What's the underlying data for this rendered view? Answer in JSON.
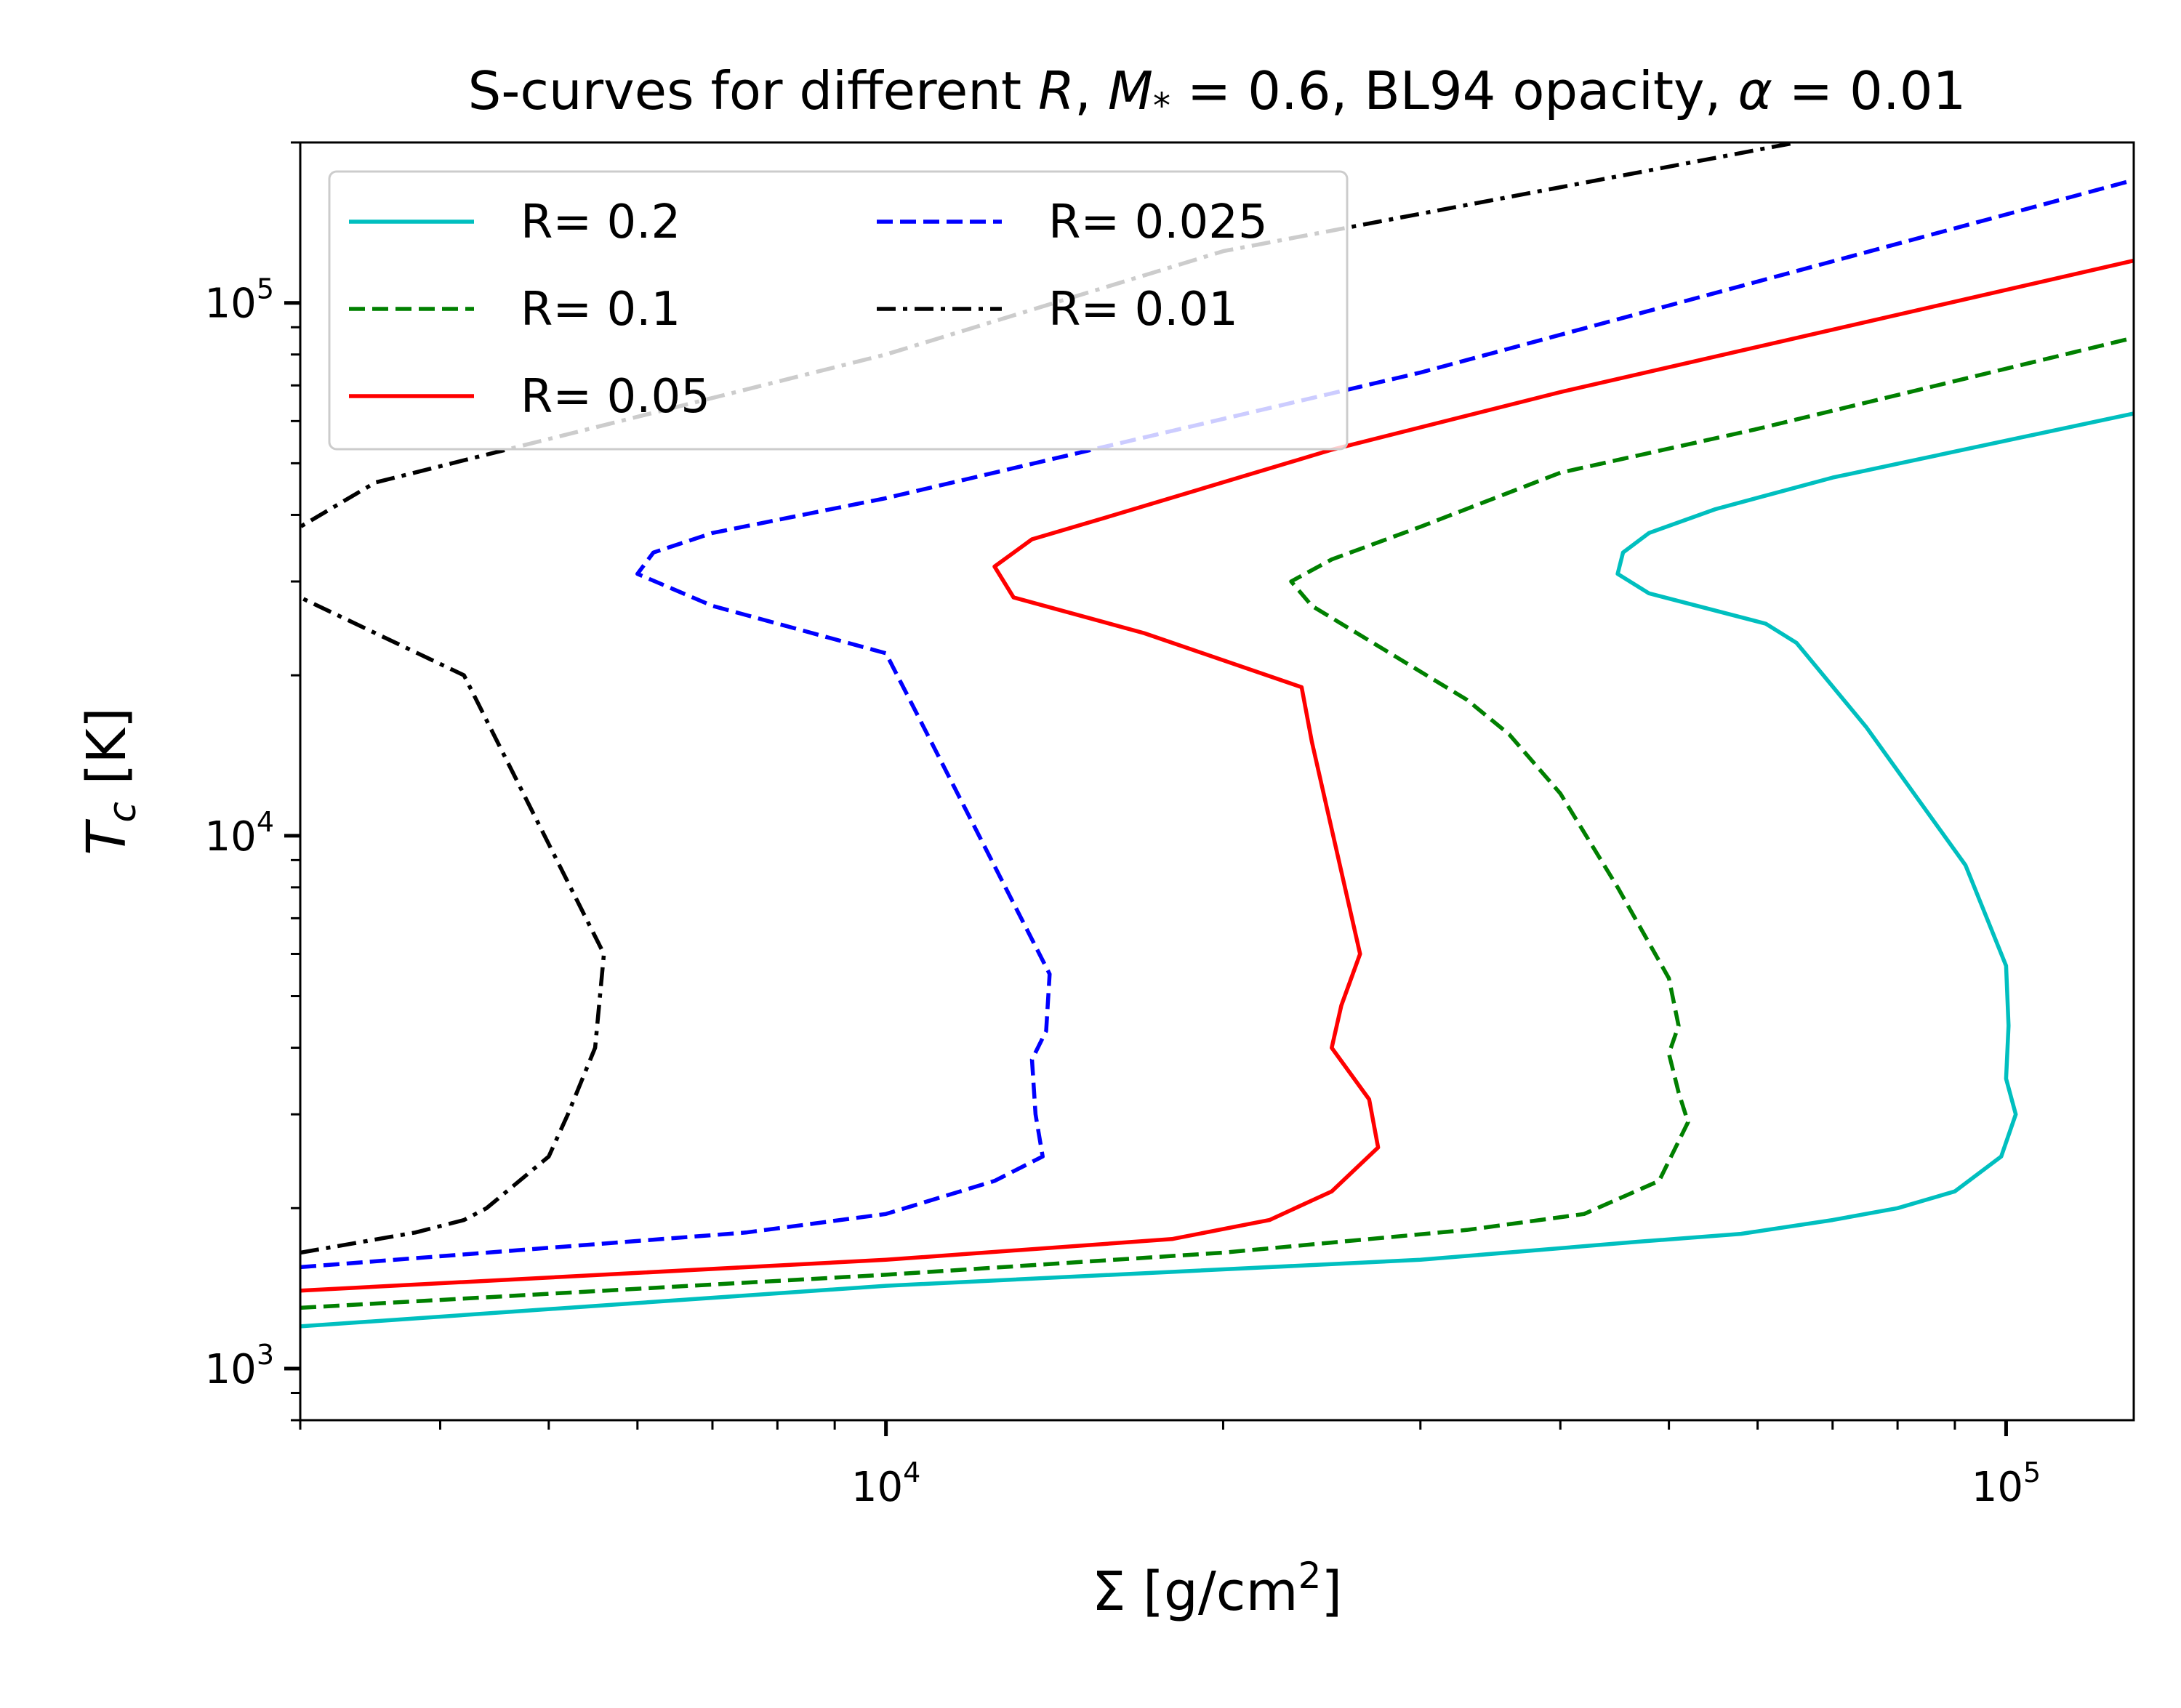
{
  "chart_data": {
    "type": "line",
    "title": "S-curves for different R, M* = 0.6, BL94 opacity, α = 0.01",
    "title_parts": {
      "prefix": "S-curves for different ",
      "r_symbol": "R",
      "sep1": ", ",
      "m_symbol": "M",
      "m_sub": "*",
      "m_value": " = 0.6, BL94 opacity, ",
      "alpha_symbol": "α",
      "alpha_value": " = 0.01"
    },
    "xlabel": "Σ [g/cm²]",
    "xlabel_parts": {
      "base": "Σ [g/cm",
      "sup": "2",
      "end": "]"
    },
    "ylabel": "T_c [K]",
    "ylabel_parts": {
      "symbol": "T",
      "sub": "c",
      "unit": " [K]"
    },
    "x_scale": "log",
    "y_scale": "log",
    "xlim": [
      3000,
      130000
    ],
    "ylim": [
      800,
      200000
    ],
    "x_ticks": [
      {
        "value": 10000,
        "base": "10",
        "exp": "4"
      },
      {
        "value": 100000,
        "base": "10",
        "exp": "5"
      }
    ],
    "y_ticks": [
      {
        "value": 1000,
        "base": "10",
        "exp": "3"
      },
      {
        "value": 10000,
        "base": "10",
        "exp": "4"
      },
      {
        "value": 100000,
        "base": "10",
        "exp": "5"
      }
    ],
    "grid": false,
    "legend_placement": "upper-left",
    "legend_columns": 2,
    "series": [
      {
        "name": "R= 0.2",
        "color": "#00bfbf",
        "dash": "solid",
        "x": [
          3000,
          10000,
          30000,
          47000,
          58000,
          70000,
          80000,
          90000,
          99000,
          102000,
          100000,
          100500,
          100000,
          92000,
          75000,
          65000,
          61000,
          48000,
          45000,
          45500,
          48000,
          55000,
          70000,
          130000
        ],
        "y": [
          1200,
          1430,
          1600,
          1730,
          1790,
          1900,
          2000,
          2150,
          2500,
          3000,
          3500,
          4400,
          5700,
          8800,
          16000,
          23000,
          25000,
          28500,
          31000,
          34000,
          37000,
          41000,
          47000,
          62000
        ]
      },
      {
        "name": "R= 0.1",
        "color": "#008000",
        "dash": "dashed",
        "x": [
          3000,
          10000,
          20000,
          33000,
          42000,
          49000,
          52000,
          51000,
          50000,
          51000,
          50000,
          45000,
          40000,
          36000,
          33000,
          24000,
          23000,
          25000,
          30000,
          40000,
          60000,
          130000
        ],
        "y": [
          1300,
          1500,
          1650,
          1820,
          1950,
          2250,
          2900,
          3300,
          3900,
          4400,
          5400,
          8000,
          12000,
          15500,
          18000,
          27000,
          30000,
          33000,
          38000,
          48000,
          58000,
          86000
        ]
      },
      {
        "name": "R= 0.05",
        "color": "#ff0000",
        "dash": "solid",
        "x": [
          3000,
          10000,
          18000,
          22000,
          25000,
          27500,
          27000,
          25000,
          25500,
          26500,
          24000,
          23500,
          17000,
          13000,
          12500,
          13500,
          16000,
          25000,
          40000,
          130000
        ],
        "y": [
          1400,
          1600,
          1750,
          1900,
          2150,
          2600,
          3200,
          4000,
          4800,
          6000,
          15000,
          19000,
          24000,
          28000,
          32000,
          36000,
          40000,
          53000,
          68000,
          120000
        ]
      },
      {
        "name": "R= 0.025",
        "color": "#0000ff",
        "dash": "dashed",
        "x": [
          3000,
          7500,
          10000,
          12500,
          13800,
          13600,
          13500,
          13900,
          14000,
          10500,
          10000,
          7000,
          6000,
          6200,
          7000,
          10000,
          30000,
          130000
        ],
        "y": [
          1550,
          1800,
          1950,
          2250,
          2500,
          3000,
          3800,
          4300,
          5500,
          18000,
          22000,
          27000,
          31000,
          34000,
          37000,
          43000,
          74000,
          170000
        ]
      },
      {
        "name": "R= 0.01",
        "color": "#000000",
        "dash": "dashdot",
        "x": [
          3000,
          3800,
          4200,
          4400,
          5000,
          5200,
          5500,
          5600,
          4200,
          3500,
          3000,
          2800,
          2800,
          3000,
          3500,
          10000,
          20000,
          65000
        ],
        "y": [
          1650,
          1800,
          1900,
          2000,
          2500,
          3000,
          4000,
          6000,
          20000,
          24000,
          28000,
          31000,
          34000,
          38000,
          46000,
          80000,
          125000,
          200000
        ]
      }
    ]
  }
}
